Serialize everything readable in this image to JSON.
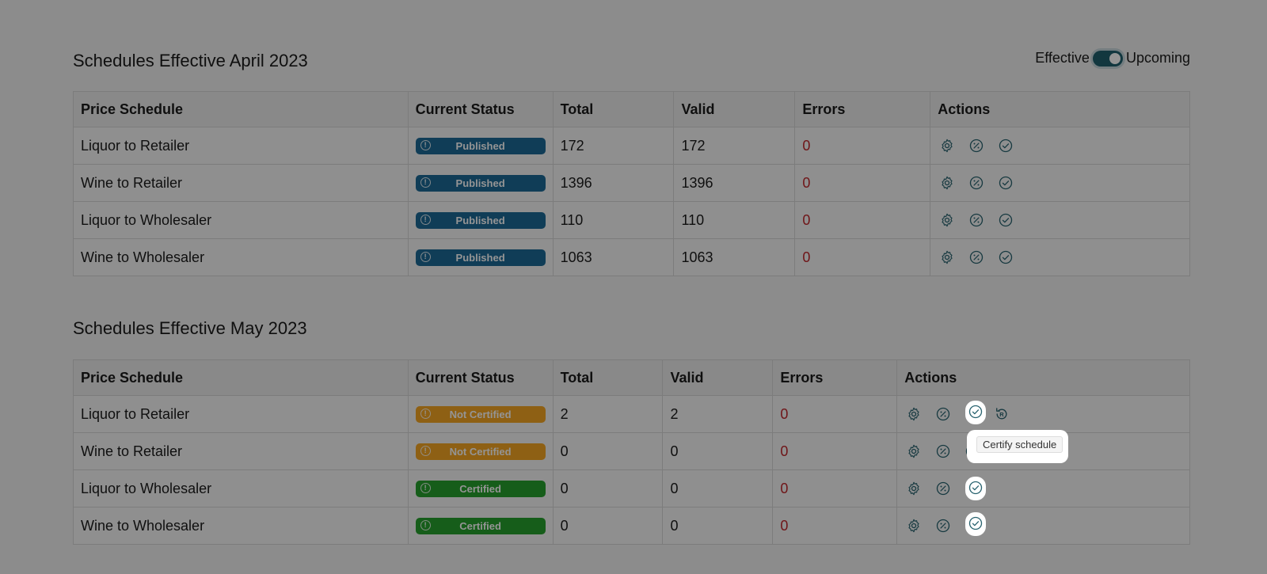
{
  "toggle": {
    "left_label": "Effective",
    "right_label": "Upcoming"
  },
  "sections": [
    {
      "title": "Schedules Effective April 2023",
      "headers": [
        "Price Schedule",
        "Current Status",
        "Total",
        "Valid",
        "Errors",
        "Actions"
      ],
      "rows": [
        {
          "name": "Liquor to Retailer",
          "status": "Published",
          "total": "172",
          "valid": "172",
          "errors": "0"
        },
        {
          "name": "Wine to Retailer",
          "status": "Published",
          "total": "1396",
          "valid": "1396",
          "errors": "0"
        },
        {
          "name": "Liquor to Wholesaler",
          "status": "Published",
          "total": "110",
          "valid": "110",
          "errors": "0"
        },
        {
          "name": "Wine to Wholesaler",
          "status": "Published",
          "total": "1063",
          "valid": "1063",
          "errors": "0"
        }
      ]
    },
    {
      "title": "Schedules Effective May 2023",
      "headers": [
        "Price Schedule",
        "Current Status",
        "Total",
        "Valid",
        "Errors",
        "Actions"
      ],
      "rows": [
        {
          "name": "Liquor to Retailer",
          "status": "Not Certified",
          "total": "2",
          "valid": "2",
          "errors": "0"
        },
        {
          "name": "Wine to Retailer",
          "status": "Not Certified",
          "total": "0",
          "valid": "0",
          "errors": "0"
        },
        {
          "name": "Liquor to Wholesaler",
          "status": "Certified",
          "total": "0",
          "valid": "0",
          "errors": "0"
        },
        {
          "name": "Wine to Wholesaler",
          "status": "Certified",
          "total": "0",
          "valid": "0",
          "errors": "0"
        }
      ]
    }
  ],
  "tooltip": {
    "text": "Certify schedule"
  },
  "icons": {
    "settings": "gear-icon",
    "discount": "percent-badge-icon",
    "certify": "check-circle-icon",
    "reset": "reset-r-icon",
    "status": "info-icon"
  },
  "colors": {
    "published": "#1d6a96",
    "not_certified": "#f5a623",
    "certified": "#27a02d",
    "error_text": "#c0262b",
    "icon": "#2a6470"
  }
}
